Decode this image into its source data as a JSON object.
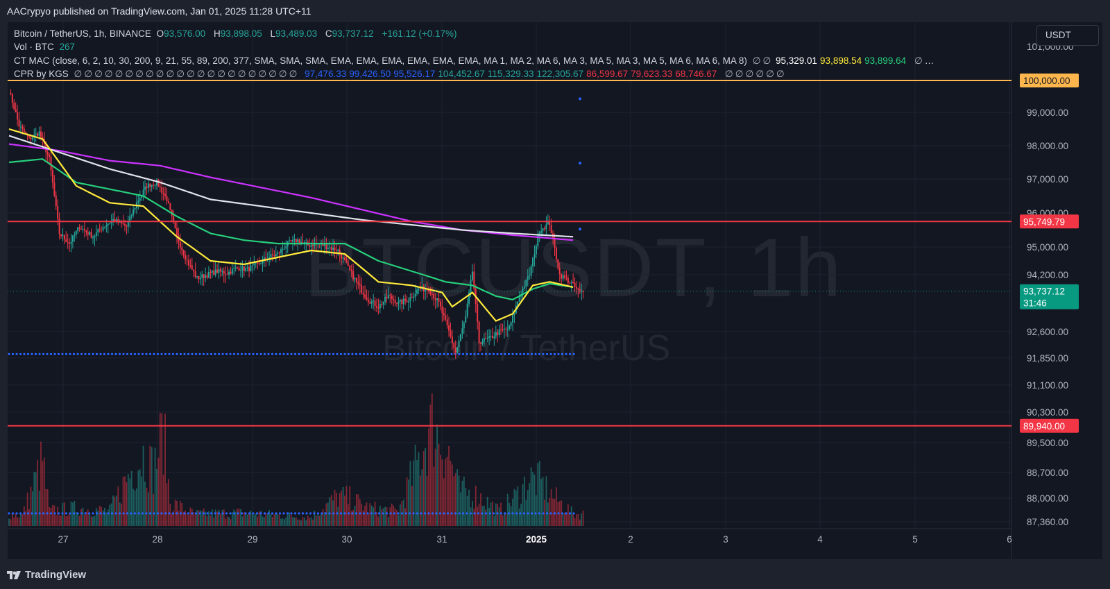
{
  "caption": "AACrypyo published on TradingView.com, Jan 01, 2025 11:28 UTC+11",
  "currency_button": "USDT",
  "footer_brand": "TradingView",
  "watermark": {
    "symbol": "BTCUSDT, 1h",
    "name": "Bitcoin / TetherUS"
  },
  "legend": {
    "symbol": "Bitcoin / TetherUS, 1h, BINANCE",
    "o_label": "O",
    "o_value": "93,576.00",
    "h_label": "H",
    "h_value": "93,898.05",
    "l_label": "L",
    "l_value": "93,489.03",
    "c_label": "C",
    "c_value": "93,737.12",
    "change": "+161.12 (+0.17%)",
    "vol_label": "Vol · BTC",
    "vol_value": "267",
    "ctmac_label": "CT MAC (close, 6, 2, 10, 30, 200, 9, 21, 55, 89, 200, 377, SMA, SMA, SMA, EMA, EMA, EMA, EMA, EMA, EMA, MA 1, MA 2, MA 6, MA 3, MA 5, MA 3, MA 5, MA 6, MA 6, MA 8)",
    "ctmac_values": [
      {
        "v": "95,329.01",
        "color": "#ffffff"
      },
      {
        "v": "93,898.54",
        "color": "#ffeb3b"
      },
      {
        "v": "93,899.64",
        "color": "#26d07c"
      }
    ],
    "ctmac_tail": "…",
    "cpr_label": "CPR by KGS",
    "cpr_values": [
      {
        "v": "97,476.33",
        "color": "#2962ff"
      },
      {
        "v": "99,426.50",
        "color": "#2962ff"
      },
      {
        "v": "95,526.17",
        "color": "#2962ff"
      },
      {
        "v": "104,452.67",
        "color": "#26a69a"
      },
      {
        "v": "115,329.33",
        "color": "#26a69a"
      },
      {
        "v": "122,305.67",
        "color": "#26a69a"
      },
      {
        "v": "86,599.67",
        "color": "#f23645"
      },
      {
        "v": "79,623.33",
        "color": "#f23645"
      },
      {
        "v": "68,746.67",
        "color": "#f23645"
      }
    ]
  },
  "chart_data": {
    "type": "candlestick",
    "interval": "1h",
    "price_axis": {
      "ticks": [
        99000,
        98000,
        97000,
        96000,
        95000,
        94200,
        92600,
        91850,
        91100,
        90300,
        89500,
        88700,
        88000,
        87360
      ],
      "tick_labels": [
        "99,000.00",
        "98,000.00",
        "97,000.00",
        "96,000.00",
        "95,000.00",
        "94,200.00",
        "92,600.00",
        "91,850.00",
        "91,100.00",
        "90,300.00",
        "89,500.00",
        "88,700.00",
        "88,000.00",
        "87,360.00"
      ],
      "top_partial_label": "101,000.00"
    },
    "time_axis": {
      "labels": [
        "27",
        "28",
        "29",
        "30",
        "31",
        "2025",
        "2",
        "3",
        "4",
        "5",
        "6"
      ],
      "bold_label": "2025"
    },
    "horizontal_lines": [
      {
        "price": 100000,
        "label": "100,000.00",
        "color": "#ffb74d",
        "text_color": "#131722"
      },
      {
        "price": 95749.79,
        "label": "95,749.79",
        "color": "#f23645",
        "text_color": "#ffffff"
      },
      {
        "price": 89940,
        "label": "89,940.00",
        "color": "#f23645",
        "text_color": "#ffffff"
      }
    ],
    "last_price": {
      "price": 93737.12,
      "label": "93,737.12",
      "countdown": "31:46",
      "color": "#089981"
    },
    "cpr_dotted_levels": [
      92000,
      87400
    ],
    "cpr_dots_right": [
      99426.5,
      97476.33,
      95526.17
    ],
    "colors": {
      "up": "#26a69a",
      "down": "#f23645",
      "ma_yellow": "#ffeb3b",
      "ma_green": "#26d07c",
      "ma_white": "#e0e3eb",
      "ma_magenta": "#cc33ff",
      "cpr_blue": "#2962ff"
    },
    "candle_keypoints": [
      [
        0,
        99700
      ],
      [
        6,
        98600
      ],
      [
        12,
        98200
      ],
      [
        18,
        98400
      ],
      [
        24,
        97600
      ],
      [
        30,
        95400
      ],
      [
        36,
        95100
      ],
      [
        42,
        95600
      ],
      [
        50,
        95300
      ],
      [
        56,
        95600
      ],
      [
        62,
        95800
      ],
      [
        70,
        95600
      ],
      [
        76,
        96300
      ],
      [
        82,
        96800
      ],
      [
        88,
        96900
      ],
      [
        94,
        96400
      ],
      [
        100,
        95300
      ],
      [
        106,
        94600
      ],
      [
        112,
        94100
      ],
      [
        118,
        94200
      ],
      [
        124,
        94300
      ],
      [
        130,
        94250
      ],
      [
        136,
        94400
      ],
      [
        142,
        94350
      ],
      [
        148,
        94500
      ],
      [
        154,
        94700
      ],
      [
        160,
        94800
      ],
      [
        166,
        95100
      ],
      [
        172,
        95200
      ],
      [
        178,
        95050
      ],
      [
        184,
        95100
      ],
      [
        190,
        95000
      ],
      [
        196,
        94900
      ],
      [
        202,
        94400
      ],
      [
        208,
        93900
      ],
      [
        214,
        93500
      ],
      [
        220,
        93300
      ],
      [
        226,
        93600
      ],
      [
        232,
        93400
      ],
      [
        238,
        93500
      ],
      [
        244,
        93800
      ],
      [
        250,
        93800
      ],
      [
        256,
        93400
      ],
      [
        262,
        92600
      ],
      [
        266,
        92000
      ],
      [
        272,
        93000
      ],
      [
        276,
        94300
      ],
      [
        280,
        92300
      ],
      [
        286,
        92400
      ],
      [
        292,
        92600
      ],
      [
        298,
        92700
      ],
      [
        304,
        93600
      ],
      [
        310,
        94200
      ],
      [
        316,
        95500
      ],
      [
        322,
        95700
      ],
      [
        328,
        94200
      ],
      [
        334,
        94000
      ],
      [
        340,
        93700
      ]
    ],
    "ma_series": {
      "yellow": [
        [
          0,
          98500
        ],
        [
          20,
          98200
        ],
        [
          40,
          96800
        ],
        [
          60,
          96300
        ],
        [
          80,
          96200
        ],
        [
          100,
          95300
        ],
        [
          120,
          94600
        ],
        [
          140,
          94500
        ],
        [
          160,
          94700
        ],
        [
          180,
          94900
        ],
        [
          200,
          94800
        ],
        [
          220,
          94000
        ],
        [
          240,
          93900
        ],
        [
          258,
          93700
        ],
        [
          264,
          93300
        ],
        [
          276,
          93700
        ],
        [
          290,
          92900
        ],
        [
          300,
          93100
        ],
        [
          312,
          93900
        ],
        [
          322,
          94000
        ],
        [
          336,
          93850
        ]
      ],
      "green": [
        [
          0,
          97500
        ],
        [
          20,
          97600
        ],
        [
          40,
          96900
        ],
        [
          60,
          96700
        ],
        [
          80,
          96500
        ],
        [
          100,
          95900
        ],
        [
          120,
          95400
        ],
        [
          140,
          95200
        ],
        [
          160,
          95100
        ],
        [
          180,
          95100
        ],
        [
          200,
          95100
        ],
        [
          220,
          94600
        ],
        [
          240,
          94300
        ],
        [
          260,
          94000
        ],
        [
          276,
          93900
        ],
        [
          290,
          93600
        ],
        [
          300,
          93500
        ],
        [
          312,
          93800
        ],
        [
          322,
          93950
        ],
        [
          336,
          93850
        ]
      ],
      "white": [
        [
          0,
          98300
        ],
        [
          30,
          97800
        ],
        [
          60,
          97300
        ],
        [
          90,
          96900
        ],
        [
          120,
          96400
        ],
        [
          150,
          96200
        ],
        [
          180,
          96000
        ],
        [
          210,
          95800
        ],
        [
          240,
          95650
        ],
        [
          270,
          95500
        ],
        [
          300,
          95400
        ],
        [
          336,
          95300
        ]
      ],
      "magenta": [
        [
          0,
          98050
        ],
        [
          30,
          97850
        ],
        [
          60,
          97550
        ],
        [
          90,
          97400
        ],
        [
          120,
          97050
        ],
        [
          150,
          96750
        ],
        [
          180,
          96450
        ],
        [
          210,
          96100
        ],
        [
          240,
          95750
        ],
        [
          270,
          95500
        ],
        [
          300,
          95350
        ],
        [
          336,
          95200
        ]
      ]
    },
    "volume_keypoints": [
      [
        0,
        20
      ],
      [
        8,
        18
      ],
      [
        20,
        110
      ],
      [
        24,
        25
      ],
      [
        40,
        30
      ],
      [
        60,
        25
      ],
      [
        72,
        90
      ],
      [
        80,
        120
      ],
      [
        86,
        95
      ],
      [
        92,
        160
      ],
      [
        96,
        40
      ],
      [
        110,
        20
      ],
      [
        140,
        22
      ],
      [
        160,
        18
      ],
      [
        180,
        15
      ],
      [
        196,
        50
      ],
      [
        204,
        45
      ],
      [
        214,
        30
      ],
      [
        232,
        25
      ],
      [
        252,
        170
      ],
      [
        256,
        150
      ],
      [
        262,
        120
      ],
      [
        268,
        60
      ],
      [
        280,
        50
      ],
      [
        292,
        25
      ],
      [
        304,
        55
      ],
      [
        310,
        80
      ],
      [
        316,
        75
      ],
      [
        322,
        55
      ],
      [
        336,
        20
      ]
    ]
  }
}
